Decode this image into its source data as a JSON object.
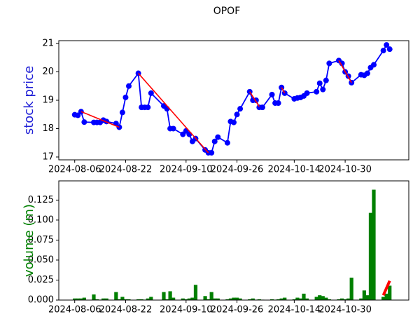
{
  "chart_data": [
    {
      "type": "line",
      "title": "OPOF",
      "ylabel": "stock price",
      "label_color": "#1f1fd6",
      "x": [
        "2024-08-06",
        "2024-08-07",
        "2024-08-08",
        "2024-08-09",
        "2024-08-12",
        "2024-08-13",
        "2024-08-14",
        "2024-08-15",
        "2024-08-16",
        "2024-08-19",
        "2024-08-20",
        "2024-08-21",
        "2024-08-22",
        "2024-08-23",
        "2024-08-26",
        "2024-08-27",
        "2024-08-28",
        "2024-08-29",
        "2024-08-30",
        "2024-09-03",
        "2024-09-04",
        "2024-09-05",
        "2024-09-06",
        "2024-09-09",
        "2024-09-10",
        "2024-09-11",
        "2024-09-12",
        "2024-09-13",
        "2024-09-16",
        "2024-09-17",
        "2024-09-18",
        "2024-09-19",
        "2024-09-20",
        "2024-09-23",
        "2024-09-24",
        "2024-09-25",
        "2024-09-26",
        "2024-09-27",
        "2024-09-30",
        "2024-10-01",
        "2024-10-02",
        "2024-10-03",
        "2024-10-04",
        "2024-10-07",
        "2024-10-08",
        "2024-10-09",
        "2024-10-10",
        "2024-10-11",
        "2024-10-14",
        "2024-10-15",
        "2024-10-16",
        "2024-10-17",
        "2024-10-18",
        "2024-10-21",
        "2024-10-22",
        "2024-10-23",
        "2024-10-24",
        "2024-10-25",
        "2024-10-28",
        "2024-10-29",
        "2024-10-30",
        "2024-10-31",
        "2024-11-01",
        "2024-11-04",
        "2024-11-05",
        "2024-11-06",
        "2024-11-07",
        "2024-11-08",
        "2024-11-11",
        "2024-11-12",
        "2024-11-13"
      ],
      "series": [
        {
          "color": "blue",
          "values": [
            18.49,
            18.47,
            18.6,
            18.23,
            18.22,
            18.22,
            18.22,
            18.3,
            18.25,
            18.18,
            18.05,
            18.57,
            19.1,
            19.5,
            19.95,
            18.75,
            18.75,
            18.75,
            19.25,
            18.8,
            18.7,
            18.0,
            18.0,
            17.8,
            17.92,
            17.8,
            17.55,
            17.65,
            17.25,
            17.15,
            17.15,
            17.55,
            17.7,
            17.5,
            18.25,
            18.22,
            18.5,
            18.7,
            19.3,
            19.0,
            19.0,
            18.75,
            18.75,
            19.2,
            18.9,
            18.9,
            19.45,
            19.25,
            19.05,
            19.08,
            19.1,
            19.15,
            19.25,
            19.3,
            19.6,
            19.38,
            19.7,
            20.3,
            20.4,
            20.3,
            20.0,
            19.85,
            19.62,
            19.9,
            19.88,
            19.95,
            20.15,
            20.25,
            20.75,
            20.95,
            20.8
          ]
        }
      ],
      "segments": [
        {
          "color": "red",
          "x": [
            "2024-08-08",
            "2024-08-20"
          ],
          "values": [
            18.6,
            18.05
          ]
        },
        {
          "color": "red",
          "x": [
            "2024-08-26",
            "2024-09-17"
          ],
          "values": [
            19.95,
            17.15
          ]
        },
        {
          "color": "red",
          "x": [
            "2024-09-30",
            "2024-10-03"
          ],
          "values": [
            19.3,
            18.78
          ]
        },
        {
          "color": "red",
          "x": [
            "2024-10-10",
            "2024-10-11"
          ],
          "values": [
            19.45,
            19.25
          ]
        },
        {
          "color": "red",
          "x": [
            "2024-10-28",
            "2024-11-01"
          ],
          "values": [
            20.4,
            19.62
          ]
        }
      ],
      "xlim": [
        "2024-08-01",
        "2024-11-19"
      ],
      "xticks": [
        "2024-08-06",
        "2024-08-22",
        "2024-09-10",
        "2024-09-26",
        "2024-10-14",
        "2024-10-30"
      ],
      "ylim": [
        16.9,
        21.1
      ],
      "yticks": [
        17,
        18,
        19,
        20,
        21
      ]
    },
    {
      "type": "bar",
      "ylabel": "volume (m)",
      "label_color": "green",
      "x": [
        "2024-08-06",
        "2024-08-07",
        "2024-08-08",
        "2024-08-09",
        "2024-08-12",
        "2024-08-13",
        "2024-08-14",
        "2024-08-15",
        "2024-08-16",
        "2024-08-19",
        "2024-08-20",
        "2024-08-21",
        "2024-08-22",
        "2024-08-23",
        "2024-08-26",
        "2024-08-27",
        "2024-08-28",
        "2024-08-29",
        "2024-08-30",
        "2024-09-03",
        "2024-09-04",
        "2024-09-05",
        "2024-09-06",
        "2024-09-09",
        "2024-09-10",
        "2024-09-11",
        "2024-09-12",
        "2024-09-13",
        "2024-09-16",
        "2024-09-17",
        "2024-09-18",
        "2024-09-19",
        "2024-09-20",
        "2024-09-23",
        "2024-09-24",
        "2024-09-25",
        "2024-09-26",
        "2024-09-27",
        "2024-09-30",
        "2024-10-01",
        "2024-10-02",
        "2024-10-03",
        "2024-10-04",
        "2024-10-07",
        "2024-10-08",
        "2024-10-09",
        "2024-10-10",
        "2024-10-11",
        "2024-10-14",
        "2024-10-15",
        "2024-10-16",
        "2024-10-17",
        "2024-10-18",
        "2024-10-21",
        "2024-10-22",
        "2024-10-23",
        "2024-10-24",
        "2024-10-25",
        "2024-10-28",
        "2024-10-29",
        "2024-10-30",
        "2024-10-31",
        "2024-11-01",
        "2024-11-04",
        "2024-11-05",
        "2024-11-06",
        "2024-11-07",
        "2024-11-08",
        "2024-11-11",
        "2024-11-12",
        "2024-11-13"
      ],
      "series": [
        {
          "color": "green",
          "values": [
            0.002,
            0.002,
            0.002,
            0.003,
            0.007,
            0.001,
            0.0005,
            0.002,
            0.002,
            0.01,
            0.001,
            0.004,
            0.001,
            0.001,
            0.001,
            0.001,
            0.0005,
            0.002,
            0.004,
            0.01,
            0.001,
            0.011,
            0.003,
            0.002,
            0.001,
            0.002,
            0.003,
            0.019,
            0.005,
            0.001,
            0.01,
            0.002,
            0.002,
            0.001,
            0.002,
            0.003,
            0.003,
            0.002,
            0.001,
            0.002,
            0.0005,
            0.001,
            0.0005,
            0.001,
            0.0005,
            0.001,
            0.002,
            0.003,
            0.001,
            0.003,
            0.002,
            0.008,
            0.002,
            0.004,
            0.006,
            0.005,
            0.003,
            0.001,
            0.001,
            0.002,
            0.001,
            0.002,
            0.028,
            0.002,
            0.012,
            0.006,
            0.109,
            0.138,
            0.004,
            0.008,
            0.018
          ]
        }
      ],
      "segments": [
        {
          "color": "red",
          "x": [
            "2024-11-11",
            "2024-11-13"
          ],
          "values": [
            0.006,
            0.024
          ]
        }
      ],
      "xlim": [
        "2024-08-01",
        "2024-11-19"
      ],
      "xticks": [
        "2024-08-06",
        "2024-08-22",
        "2024-09-10",
        "2024-09-26",
        "2024-10-14",
        "2024-10-30"
      ],
      "ylim": [
        0,
        0.149
      ],
      "yticks": [
        {
          "value": 0,
          "label": "0.000"
        },
        0.025,
        {
          "value": 0.05,
          "label": "0.050"
        },
        0.075,
        {
          "value": 0.1,
          "label": "0.100"
        },
        0.125
      ]
    }
  ]
}
